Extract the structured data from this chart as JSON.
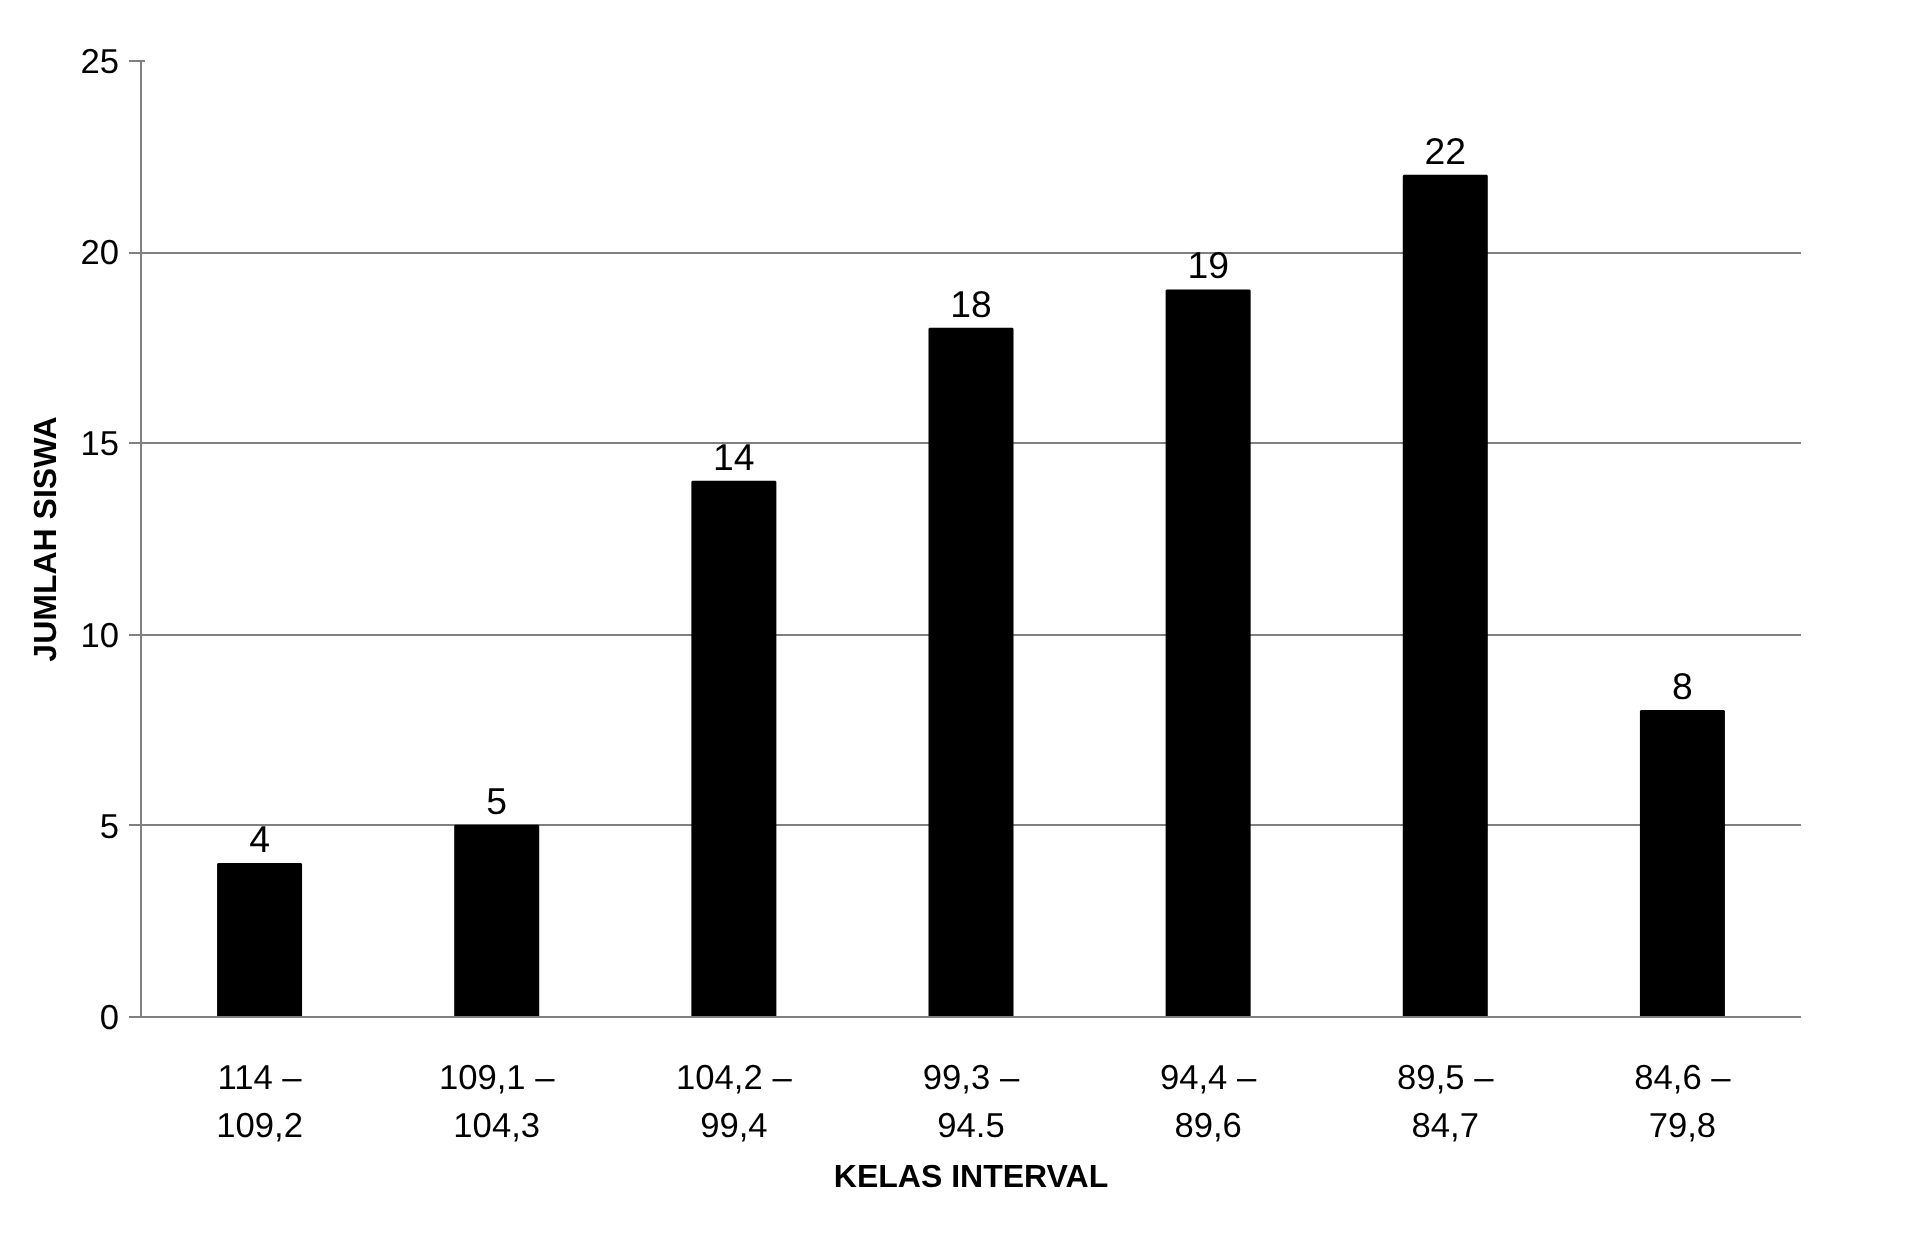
{
  "chart_data": {
    "type": "bar",
    "xlabel": "KELAS INTERVAL",
    "ylabel": "JUMLAH SISWA",
    "categories": [
      "114 – 109,2",
      "109,1 – 104,3",
      "104,2 – 99,4",
      "99,3 – 94.5",
      "94,4 – 89,6",
      "89,5 – 84,7",
      "84,6 – 79,8"
    ],
    "values": [
      4,
      5,
      14,
      18,
      19,
      22,
      8
    ],
    "color": "#000000",
    "ylim": [
      0,
      25
    ],
    "yticks": [
      0,
      5,
      10,
      15,
      20,
      25
    ],
    "grid": "y",
    "data_labels": true
  }
}
